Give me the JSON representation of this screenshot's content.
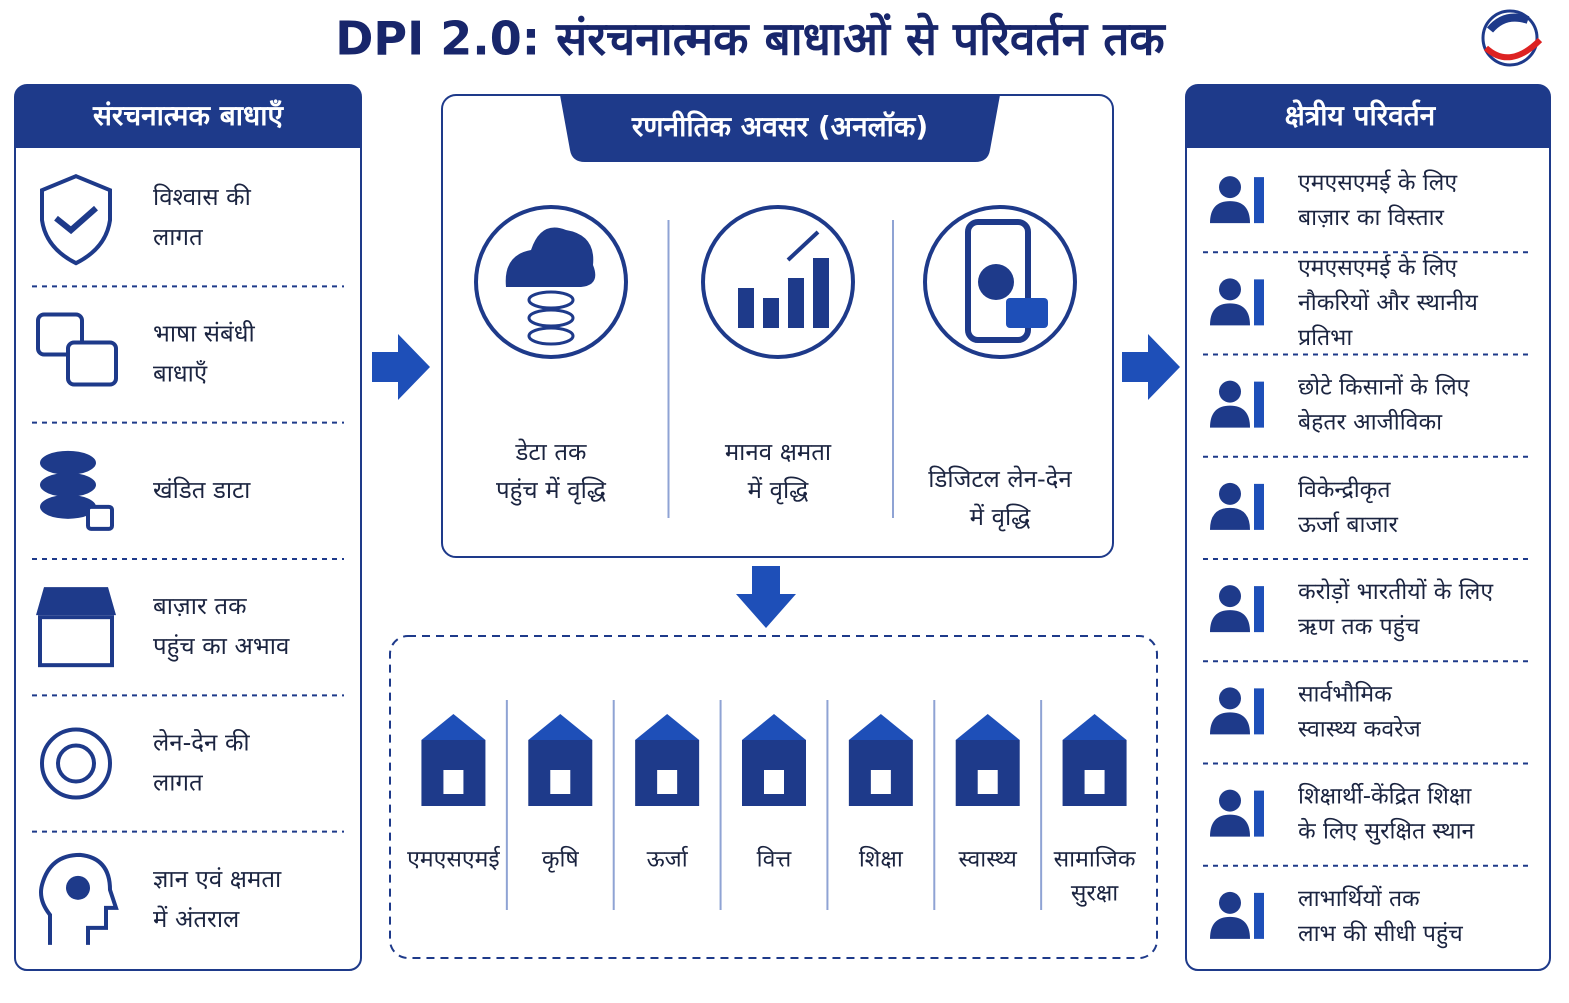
{
  "title": "DPI 2.0: संरचनात्मक बाधाओं से परिवर्तन तक",
  "barriers": {
    "heading": "संरचनात्मक बाधाएँ",
    "items": [
      [
        "विश्वास की",
        "लागत"
      ],
      [
        "भाषा संबंधी",
        "बाधाएँ"
      ],
      [
        "खंडित डाटा"
      ],
      [
        "बाज़ार तक",
        "पहुंच का अभाव"
      ],
      [
        "लेन-देन की",
        "लागत"
      ],
      [
        "ज्ञान एवं क्षमता",
        "में अंतराल"
      ]
    ]
  },
  "opportunities": {
    "heading": "रणनीतिक अवसर (अनलॉक)",
    "items": [
      [
        "डेटा तक",
        "पहुंच में वृद्धि"
      ],
      [
        "मानव क्षमता",
        "में वृद्धि"
      ],
      [
        "डिजिटल लेन-देन",
        "में वृद्धि"
      ]
    ]
  },
  "sectors": [
    [
      "एमएसएमई"
    ],
    [
      "कृषि"
    ],
    [
      "ऊर्जा"
    ],
    [
      "वित्त"
    ],
    [
      "शिक्षा"
    ],
    [
      "स्वास्थ्य"
    ],
    [
      "सामाजिक",
      "सुरक्षा"
    ]
  ],
  "transformations": {
    "heading": "क्षेत्रीय परिवर्तन",
    "items": [
      [
        "एमएसएमई के लिए",
        "बाज़ार का विस्तार"
      ],
      [
        "एमएसएमई के लिए",
        "नौकरियों और स्थानीय",
        "प्रतिभा"
      ],
      [
        "छोटे किसानों के लिए",
        "बेहतर आजीविका"
      ],
      [
        "विकेन्द्रीकृत",
        "ऊर्जा बाजार"
      ],
      [
        "करोड़ों भारतीयों के लिए",
        "ऋण तक पहुंच"
      ],
      [
        "सार्वभौमिक",
        "स्वास्थ्य कवरेज"
      ],
      [
        "शिक्षार्थी-केंद्रित शिक्षा",
        "के लिए सुरक्षित स्थान"
      ],
      [
        "लाभार्थियों तक",
        "लाभ की सीधी पहुंच"
      ]
    ]
  }
}
